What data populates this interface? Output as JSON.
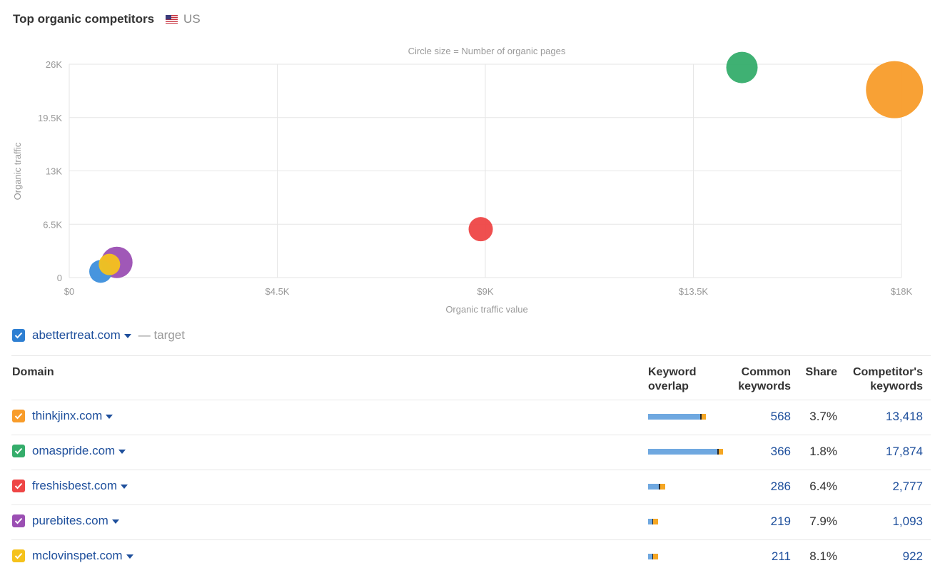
{
  "header": {
    "title": "Top organic competitors",
    "country": "US"
  },
  "chart_data": {
    "type": "scatter",
    "subtitle": "Circle size = Number of organic pages",
    "xlabel": "Organic traffic value",
    "ylabel": "Organic traffic",
    "xlim": [
      0,
      18000
    ],
    "ylim": [
      0,
      26000
    ],
    "x_ticks": [
      "$0",
      "$4.5K",
      "$9K",
      "$13.5K",
      "$18K"
    ],
    "y_ticks": [
      "0",
      "6.5K",
      "13K",
      "19.5K",
      "26K"
    ],
    "grid": true,
    "points": [
      {
        "domain": "thinkjinx.com",
        "x": 17850,
        "y": 22900,
        "size": 40,
        "color": "#f89c2a"
      },
      {
        "domain": "omaspride.com",
        "x": 14550,
        "y": 25600,
        "size": 22,
        "color": "#35ad6b"
      },
      {
        "domain": "freshisbest.com",
        "x": 8900,
        "y": 5900,
        "size": 17,
        "color": "#ee4646"
      },
      {
        "domain": "purebites.com",
        "x": 1030,
        "y": 1850,
        "size": 22,
        "color": "#9b4fb3"
      },
      {
        "domain": "abettertreat.com",
        "x": 680,
        "y": 750,
        "size": 16,
        "color": "#3d8fdc"
      },
      {
        "domain": "mclovinspet.com",
        "x": 870,
        "y": 1600,
        "size": 15,
        "color": "#f5c21b"
      }
    ]
  },
  "target": {
    "domain": "abettertreat.com",
    "label": "— target",
    "color": "#2e7fd2"
  },
  "table": {
    "headers": {
      "domain": "Domain",
      "overlap": "Keyword overlap",
      "common": "Common keywords",
      "share": "Share",
      "competitor": "Competitor's keywords"
    },
    "rows": [
      {
        "domain": "thinkjinx.com",
        "color": "#f89c2a",
        "common": "568",
        "share": "3.7%",
        "competitor": "13,418",
        "overlap": [
          73,
          2,
          6
        ]
      },
      {
        "domain": "omaspride.com",
        "color": "#35ad6b",
        "common": "366",
        "share": "1.8%",
        "competitor": "17,874",
        "overlap": [
          97,
          2,
          6
        ]
      },
      {
        "domain": "freshisbest.com",
        "color": "#ee4646",
        "common": "286",
        "share": "6.4%",
        "competitor": "2,777",
        "overlap": [
          15,
          2,
          7
        ]
      },
      {
        "domain": "purebites.com",
        "color": "#9b4fb3",
        "common": "219",
        "share": "7.9%",
        "competitor": "1,093",
        "overlap": [
          6,
          1,
          7
        ]
      },
      {
        "domain": "mclovinspet.com",
        "color": "#f5c21b",
        "common": "211",
        "share": "8.1%",
        "competitor": "922",
        "overlap": [
          6,
          1,
          7
        ]
      }
    ]
  }
}
